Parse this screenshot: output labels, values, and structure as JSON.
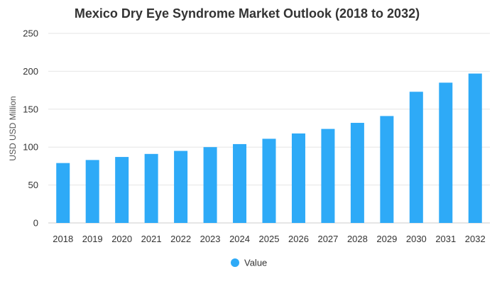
{
  "chart_data": {
    "type": "bar",
    "title": "Mexico Dry Eye Syndrome Market Outlook (2018 to 2032)",
    "xlabel": "",
    "ylabel": "USD USD Million",
    "categories": [
      "2018",
      "2019",
      "2020",
      "2021",
      "2022",
      "2023",
      "2024",
      "2025",
      "2026",
      "2027",
      "2028",
      "2029",
      "2030",
      "2031",
      "2032"
    ],
    "series": [
      {
        "name": "Value",
        "color": "#2eaaf7",
        "values": [
          79,
          83,
          87,
          91,
          95,
          100,
          104,
          111,
          118,
          124,
          132,
          141,
          173,
          185,
          197
        ]
      }
    ],
    "yticks": [
      0,
      50,
      100,
      150,
      200,
      250
    ],
    "ylim": [
      0,
      250
    ],
    "grid": true,
    "legend_position": "bottom-center"
  }
}
